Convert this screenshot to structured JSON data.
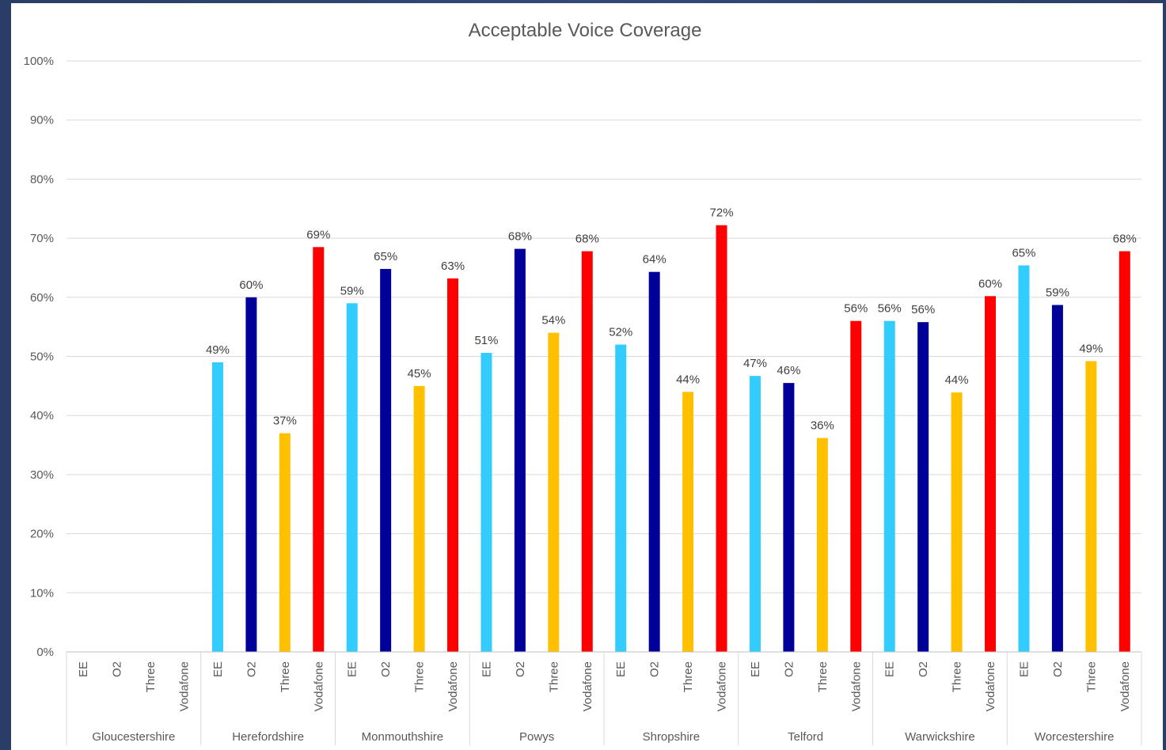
{
  "chart_data": {
    "type": "bar",
    "title": "Acceptable Voice Coverage",
    "xlabel": "",
    "ylabel": "",
    "ylim": [
      0,
      100
    ],
    "y_ticks": [
      "0%",
      "10%",
      "20%",
      "30%",
      "40%",
      "50%",
      "60%",
      "70%",
      "80%",
      "90%",
      "100%"
    ],
    "grid": true,
    "legend": "none",
    "operators": [
      "EE",
      "O2",
      "Three",
      "Vodafone"
    ],
    "operator_colors": {
      "EE": "#33ccff",
      "O2": "#000099",
      "Three": "#ffc000",
      "Vodafone": "#ff0000"
    },
    "groups": [
      {
        "name": "Gloucestershire",
        "values": [
          null,
          null,
          null,
          null
        ],
        "labels": [
          "",
          "",
          "",
          ""
        ]
      },
      {
        "name": "Herefordshire",
        "values": [
          49,
          60,
          37,
          68.5
        ],
        "labels": [
          "49%",
          "60%",
          "37%",
          "69%"
        ]
      },
      {
        "name": "Monmouthshire",
        "values": [
          59,
          64.8,
          45,
          63.2
        ],
        "labels": [
          "59%",
          "65%",
          "45%",
          "63%"
        ]
      },
      {
        "name": "Powys",
        "values": [
          50.6,
          68.2,
          54,
          67.8
        ],
        "labels": [
          "51%",
          "68%",
          "54%",
          "68%"
        ]
      },
      {
        "name": "Shropshire",
        "values": [
          52,
          64.3,
          44,
          72.2
        ],
        "labels": [
          "52%",
          "64%",
          "44%",
          "72%"
        ]
      },
      {
        "name": "Telford",
        "values": [
          46.7,
          45.5,
          36.2,
          56
        ],
        "labels": [
          "47%",
          "46%",
          "36%",
          "56%"
        ]
      },
      {
        "name": "Warwickshire",
        "values": [
          56,
          55.8,
          43.9,
          60.2
        ],
        "labels": [
          "56%",
          "56%",
          "44%",
          "60%"
        ]
      },
      {
        "name": "Worcestershire",
        "values": [
          65.4,
          58.7,
          49.2,
          67.8
        ],
        "labels": [
          "65%",
          "59%",
          "49%",
          "68%"
        ]
      }
    ]
  }
}
